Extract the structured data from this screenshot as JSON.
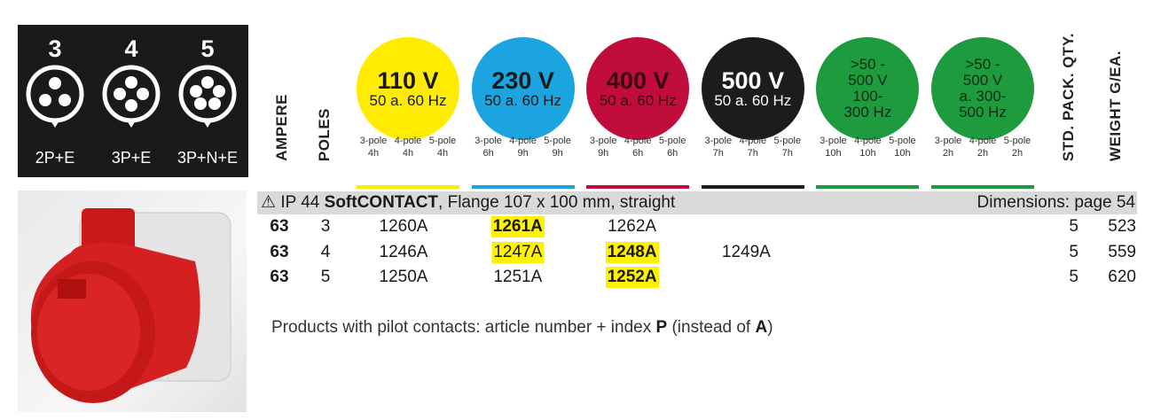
{
  "socket_types": [
    {
      "poles": "3",
      "label": "2P+E"
    },
    {
      "poles": "4",
      "label": "3P+E"
    },
    {
      "poles": "5",
      "label": "3P+N+E"
    }
  ],
  "column_headers": {
    "ampere": "AMPERE",
    "poles": "POLES",
    "pack": "STD. PACK. QTY.",
    "weight": "WEIGHT G/EA."
  },
  "voltages": [
    {
      "lines": [
        "110 V",
        "50 a. 60 Hz"
      ],
      "color": "#ffec00",
      "text_color": "#1a1a1a",
      "poles": [
        {
          "label": "3-pole",
          "hours": "4h"
        },
        {
          "label": "4-pole",
          "hours": "4h"
        },
        {
          "label": "5-pole",
          "hours": "4h"
        }
      ]
    },
    {
      "lines": [
        "230 V",
        "50 a. 60 Hz"
      ],
      "color": "#1ba4df",
      "text_color": "#1a1a1a",
      "poles": [
        {
          "label": "3-pole",
          "hours": "6h"
        },
        {
          "label": "4-pole",
          "hours": "9h"
        },
        {
          "label": "5-pole",
          "hours": "9h"
        }
      ]
    },
    {
      "lines": [
        "400 V",
        "50 a. 60 Hz"
      ],
      "color": "#c10d3c",
      "text_color": "#3a0612",
      "poles": [
        {
          "label": "3-pole",
          "hours": "9h"
        },
        {
          "label": "4-pole",
          "hours": "6h"
        },
        {
          "label": "5-pole",
          "hours": "6h"
        }
      ]
    },
    {
      "lines": [
        "500 V",
        "50 a. 60 Hz"
      ],
      "color": "#1c1c1c",
      "text_color": "#ffffff",
      "poles": [
        {
          "label": "3-pole",
          "hours": "7h"
        },
        {
          "label": "4-pole",
          "hours": "7h"
        },
        {
          "label": "5-pole",
          "hours": "7h"
        }
      ]
    },
    {
      "lines": [
        ">50 -",
        "500 V",
        "100-",
        "300 Hz"
      ],
      "color": "#1e9a3f",
      "text_color": "#0d2a14",
      "poles": [
        {
          "label": "3-pole",
          "hours": "10h"
        },
        {
          "label": "4-pole",
          "hours": "10h"
        },
        {
          "label": "5-pole",
          "hours": "10h"
        }
      ]
    },
    {
      "lines": [
        ">50 -",
        "500 V",
        "a. 300-",
        "500 Hz"
      ],
      "color": "#1e9a3f",
      "text_color": "#0d2a14",
      "poles": [
        {
          "label": "3-pole",
          "hours": "2h"
        },
        {
          "label": "4-pole",
          "hours": "2h"
        },
        {
          "label": "5-pole",
          "hours": "2h"
        }
      ]
    }
  ],
  "section": {
    "icon": "⚠",
    "prefix": "IP 44",
    "brand": "SoftCONTACT",
    "description": ", Flange 107 x 100 mm, straight",
    "dimensions": "Dimensions: page 54"
  },
  "rows": [
    {
      "ampere": "63",
      "poles": "3",
      "articles": [
        {
          "number": "1260A",
          "bold": false,
          "highlight": false
        },
        {
          "number": "1261A",
          "bold": true,
          "highlight": true
        },
        {
          "number": "1262A",
          "bold": false,
          "highlight": false
        },
        null,
        null,
        null
      ],
      "pack": "5",
      "weight": "523"
    },
    {
      "ampere": "63",
      "poles": "4",
      "articles": [
        {
          "number": "1246A",
          "bold": false,
          "highlight": false
        },
        {
          "number": "1247A",
          "bold": false,
          "highlight": true
        },
        {
          "number": "1248A",
          "bold": true,
          "highlight": true
        },
        {
          "number": "1249A",
          "bold": false,
          "highlight": false
        },
        null,
        null
      ],
      "pack": "5",
      "weight": "559"
    },
    {
      "ampere": "63",
      "poles": "5",
      "articles": [
        {
          "number": "1250A",
          "bold": false,
          "highlight": false
        },
        {
          "number": "1251A",
          "bold": false,
          "highlight": false
        },
        {
          "number": "1252A",
          "bold": true,
          "highlight": true
        },
        null,
        null,
        null
      ],
      "pack": "5",
      "weight": "620"
    }
  ],
  "note": [
    {
      "text": "Products with pilot contacts: article number + index ",
      "bold": false
    },
    {
      "text": "P",
      "bold": true
    },
    {
      "text": " (instead of ",
      "bold": false
    },
    {
      "text": "A",
      "bold": true
    },
    {
      "text": ")",
      "bold": false
    }
  ]
}
